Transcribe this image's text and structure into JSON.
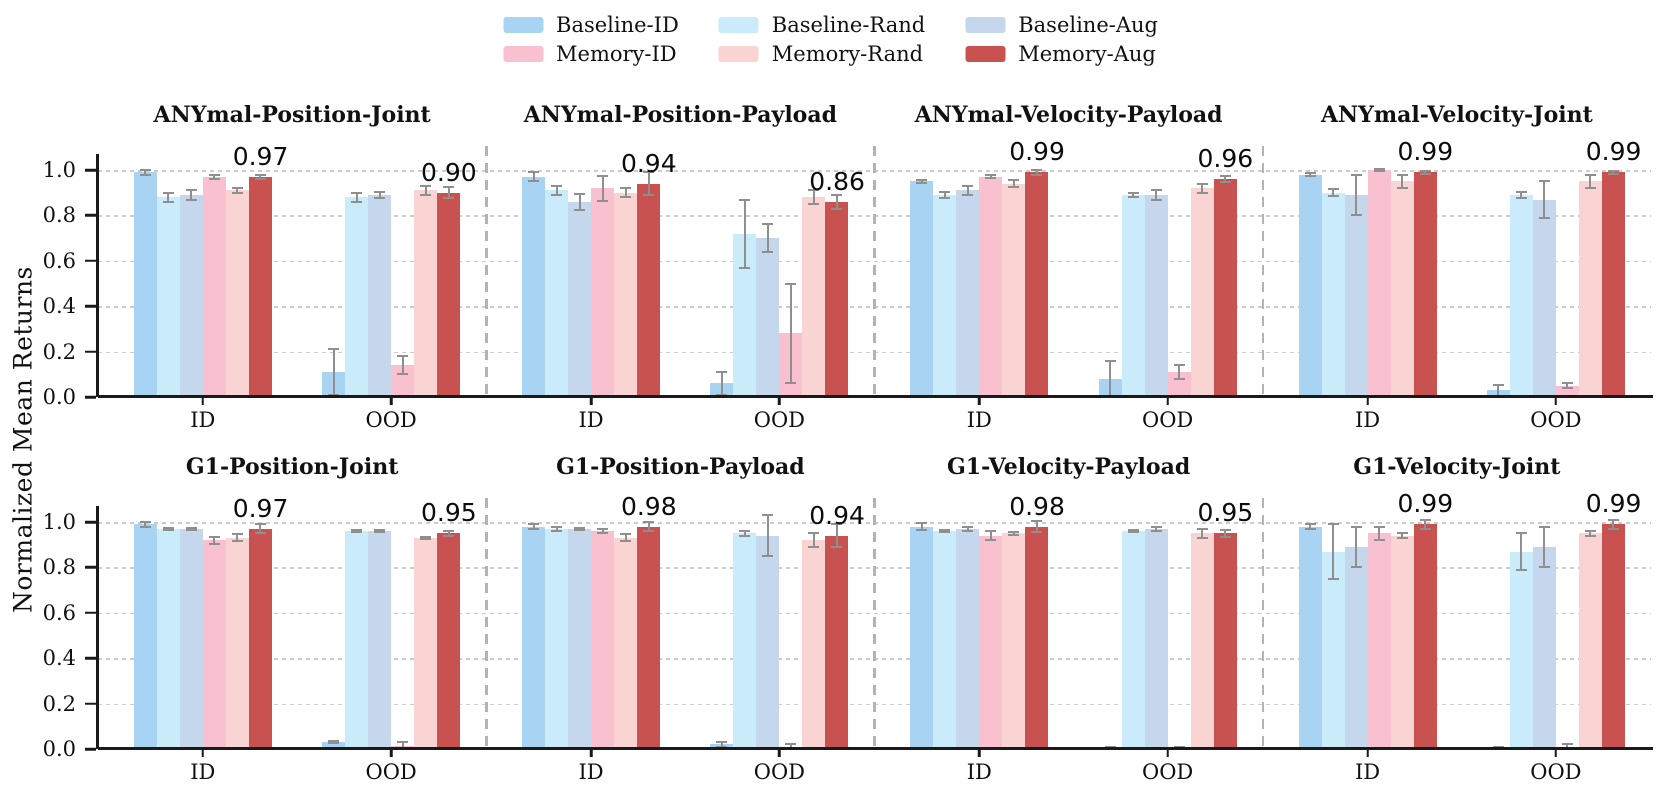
{
  "chart_data": {
    "type": "bar",
    "ylabel": "Normalized Mean Returns",
    "groups": [
      "ID",
      "OOD"
    ],
    "yticks": [
      0.0,
      0.2,
      0.4,
      0.6,
      0.8,
      1.0
    ],
    "yticklabels": [
      "0.0",
      "0.2",
      "0.4",
      "0.6",
      "0.8",
      "1.0"
    ],
    "ylim": [
      0,
      1.13
    ],
    "grid": "horizontal-dashed",
    "legend_position": "top-center",
    "error_bar_color": "#8f8f8f",
    "legend": [
      {
        "label": "Baseline-ID",
        "color": "#a9d3f2"
      },
      {
        "label": "Baseline-Rand",
        "color": "#c9ebfa"
      },
      {
        "label": "Baseline-Aug",
        "color": "#c5d7ec"
      },
      {
        "label": "Memory-ID",
        "color": "#f9c1cf"
      },
      {
        "label": "Memory-Rand",
        "color": "#fad4d3"
      },
      {
        "label": "Memory-Aug",
        "color": "#c85250"
      }
    ],
    "subplots": [
      {
        "title": "ANYmal-Position-Joint",
        "series": [
          {
            "name": "Baseline-ID",
            "values": [
              0.99,
              0.11
            ],
            "errors": [
              0.01,
              0.1
            ]
          },
          {
            "name": "Baseline-Rand",
            "values": [
              0.88,
              0.88
            ],
            "errors": [
              0.02,
              0.02
            ]
          },
          {
            "name": "Baseline-Aug",
            "values": [
              0.89,
              0.89
            ],
            "errors": [
              0.02,
              0.015
            ]
          },
          {
            "name": "Memory-ID",
            "values": [
              0.97,
              0.14
            ],
            "errors": [
              0.01,
              0.04
            ]
          },
          {
            "name": "Memory-Rand",
            "values": [
              0.91,
              0.91
            ],
            "errors": [
              0.012,
              0.02
            ]
          },
          {
            "name": "Memory-Aug",
            "values": [
              0.97,
              0.9
            ],
            "errors": [
              0.008,
              0.025
            ]
          }
        ],
        "annotations": [
          "0.97",
          "0.90"
        ]
      },
      {
        "title": "ANYmal-Position-Payload",
        "series": [
          {
            "name": "Baseline-ID",
            "values": [
              0.97,
              0.06
            ],
            "errors": [
              0.02,
              0.05
            ]
          },
          {
            "name": "Baseline-Rand",
            "values": [
              0.91,
              0.72
            ],
            "errors": [
              0.02,
              0.15
            ]
          },
          {
            "name": "Baseline-Aug",
            "values": [
              0.86,
              0.7
            ],
            "errors": [
              0.035,
              0.06
            ]
          },
          {
            "name": "Memory-ID",
            "values": [
              0.92,
              0.28
            ],
            "errors": [
              0.055,
              0.22
            ]
          },
          {
            "name": "Memory-Rand",
            "values": [
              0.9,
              0.88
            ],
            "errors": [
              0.02,
              0.03
            ]
          },
          {
            "name": "Memory-Aug",
            "values": [
              0.94,
              0.86
            ],
            "errors": [
              0.05,
              0.03
            ]
          }
        ],
        "annotations": [
          "0.94",
          "0.86"
        ]
      },
      {
        "title": "ANYmal-Velocity-Payload",
        "series": [
          {
            "name": "Baseline-ID",
            "values": [
              0.95,
              0.08
            ],
            "errors": [
              0.008,
              0.08
            ]
          },
          {
            "name": "Baseline-Rand",
            "values": [
              0.89,
              0.89
            ],
            "errors": [
              0.015,
              0.01
            ]
          },
          {
            "name": "Baseline-Aug",
            "values": [
              0.91,
              0.89
            ],
            "errors": [
              0.02,
              0.02
            ]
          },
          {
            "name": "Memory-ID",
            "values": [
              0.97,
              0.11
            ],
            "errors": [
              0.006,
              0.03
            ]
          },
          {
            "name": "Memory-Rand",
            "values": [
              0.94,
              0.92
            ],
            "errors": [
              0.015,
              0.02
            ]
          },
          {
            "name": "Memory-Aug",
            "values": [
              0.99,
              0.96
            ],
            "errors": [
              0.012,
              0.015
            ]
          }
        ],
        "annotations": [
          "0.99",
          "0.96"
        ]
      },
      {
        "title": "ANYmal-Velocity-Joint",
        "series": [
          {
            "name": "Baseline-ID",
            "values": [
              0.98,
              0.03
            ],
            "errors": [
              0.006,
              0.025
            ]
          },
          {
            "name": "Baseline-Rand",
            "values": [
              0.9,
              0.89
            ],
            "errors": [
              0.015,
              0.015
            ]
          },
          {
            "name": "Baseline-Aug",
            "values": [
              0.89,
              0.87
            ],
            "errors": [
              0.09,
              0.08
            ]
          },
          {
            "name": "Memory-ID",
            "values": [
              1.0,
              0.05
            ],
            "errors": [
              0.005,
              0.01
            ]
          },
          {
            "name": "Memory-Rand",
            "values": [
              0.95,
              0.95
            ],
            "errors": [
              0.03,
              0.03
            ]
          },
          {
            "name": "Memory-Aug",
            "values": [
              0.99,
              0.99
            ],
            "errors": [
              0.006,
              0.006
            ]
          }
        ],
        "annotations": [
          "0.99",
          "0.99"
        ]
      },
      {
        "title": "G1-Position-Joint",
        "series": [
          {
            "name": "Baseline-ID",
            "values": [
              0.99,
              0.03
            ],
            "errors": [
              0.01,
              0.005
            ]
          },
          {
            "name": "Baseline-Rand",
            "values": [
              0.97,
              0.96
            ],
            "errors": [
              0.005,
              0.005
            ]
          },
          {
            "name": "Baseline-Aug",
            "values": [
              0.97,
              0.96
            ],
            "errors": [
              0.005,
              0.005
            ]
          },
          {
            "name": "Memory-ID",
            "values": [
              0.92,
              0.015
            ],
            "errors": [
              0.015,
              0.015
            ]
          },
          {
            "name": "Memory-Rand",
            "values": [
              0.93,
              0.93
            ],
            "errors": [
              0.015,
              0.005
            ]
          },
          {
            "name": "Memory-Aug",
            "values": [
              0.97,
              0.95
            ],
            "errors": [
              0.02,
              0.01
            ]
          }
        ],
        "annotations": [
          "0.97",
          "0.95"
        ]
      },
      {
        "title": "G1-Position-Payload",
        "series": [
          {
            "name": "Baseline-ID",
            "values": [
              0.98,
              0.02
            ],
            "errors": [
              0.01,
              0.01
            ]
          },
          {
            "name": "Baseline-Rand",
            "values": [
              0.97,
              0.95
            ],
            "errors": [
              0.01,
              0.01
            ]
          },
          {
            "name": "Baseline-Aug",
            "values": [
              0.97,
              0.94
            ],
            "errors": [
              0.005,
              0.09
            ]
          },
          {
            "name": "Memory-ID",
            "values": [
              0.96,
              0.01
            ],
            "errors": [
              0.01,
              0.01
            ]
          },
          {
            "name": "Memory-Rand",
            "values": [
              0.93,
              0.92
            ],
            "errors": [
              0.015,
              0.03
            ]
          },
          {
            "name": "Memory-Aug",
            "values": [
              0.98,
              0.94
            ],
            "errors": [
              0.02,
              0.05
            ]
          }
        ],
        "annotations": [
          "0.98",
          "0.94"
        ]
      },
      {
        "title": "G1-Velocity-Payload",
        "series": [
          {
            "name": "Baseline-ID",
            "values": [
              0.98,
              0.005
            ],
            "errors": [
              0.015,
              0.005
            ]
          },
          {
            "name": "Baseline-Rand",
            "values": [
              0.96,
              0.96
            ],
            "errors": [
              0.006,
              0.006
            ]
          },
          {
            "name": "Baseline-Aug",
            "values": [
              0.97,
              0.97
            ],
            "errors": [
              0.01,
              0.01
            ]
          },
          {
            "name": "Memory-ID",
            "values": [
              0.94,
              0.005
            ],
            "errors": [
              0.02,
              0.005
            ]
          },
          {
            "name": "Memory-Rand",
            "values": [
              0.95,
              0.95
            ],
            "errors": [
              0.006,
              0.02
            ]
          },
          {
            "name": "Memory-Aug",
            "values": [
              0.98,
              0.95
            ],
            "errors": [
              0.025,
              0.015
            ]
          }
        ],
        "annotations": [
          "0.98",
          "0.95"
        ]
      },
      {
        "title": "G1-Velocity-Joint",
        "series": [
          {
            "name": "Baseline-ID",
            "values": [
              0.98,
              0.005
            ],
            "errors": [
              0.01,
              0.004
            ]
          },
          {
            "name": "Baseline-Rand",
            "values": [
              0.87,
              0.87
            ],
            "errors": [
              0.12,
              0.08
            ]
          },
          {
            "name": "Baseline-Aug",
            "values": [
              0.89,
              0.89
            ],
            "errors": [
              0.09,
              0.09
            ]
          },
          {
            "name": "Memory-ID",
            "values": [
              0.95,
              0.01
            ],
            "errors": [
              0.03,
              0.01
            ]
          },
          {
            "name": "Memory-Rand",
            "values": [
              0.94,
              0.95
            ],
            "errors": [
              0.01,
              0.01
            ]
          },
          {
            "name": "Memory-Aug",
            "values": [
              0.99,
              0.99
            ],
            "errors": [
              0.02,
              0.02
            ]
          }
        ],
        "annotations": [
          "0.99",
          "0.99"
        ]
      }
    ]
  }
}
